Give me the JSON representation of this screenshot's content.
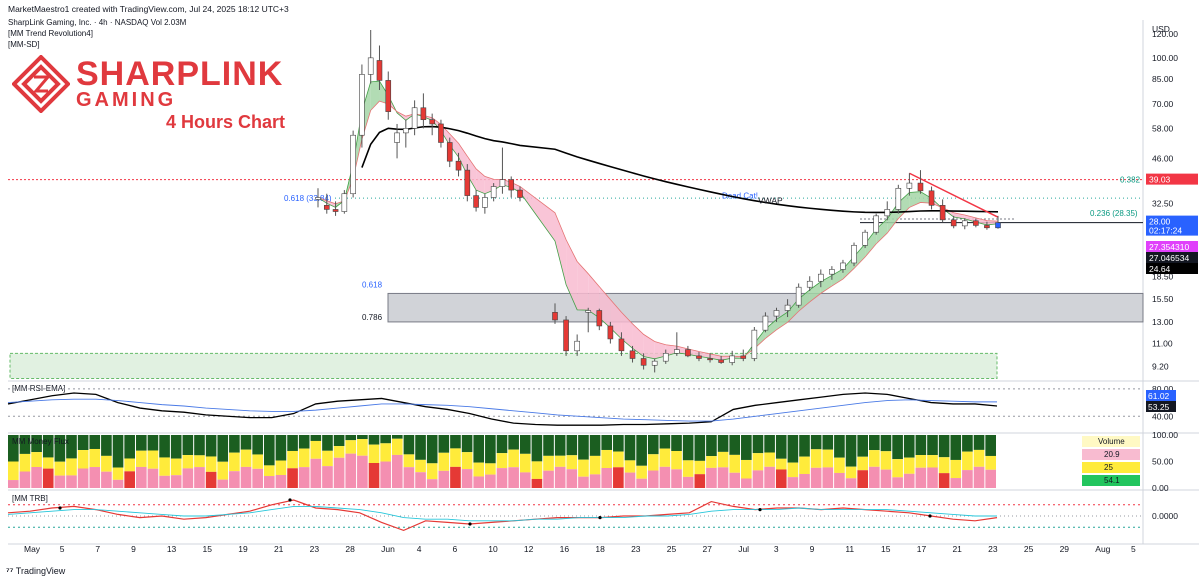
{
  "header": {
    "attribution": "MarketMaestro1 created with TradingView.com, Jul 24, 2025 18:12 UTC+3",
    "symbol_line": "SharpLink Gaming, Inc. · 4h · NASDAQ  Vol 2.03M",
    "indicator_1": "[MM Trend Revolution4]",
    "indicator_2": "[MM-SD]"
  },
  "logo": {
    "line1": "SHARPLINK",
    "line2": "GAMING",
    "subtitle": "4 Hours Chart",
    "color": "#e0393e"
  },
  "footer": {
    "brand": "TradingView"
  },
  "chart_data": [
    {
      "type": "candlestick",
      "pane": "price",
      "currency": "USD",
      "scale": "log",
      "y_ticks": [
        9.2,
        11.0,
        13.0,
        15.5,
        18.5,
        24.64,
        32.5,
        39.03,
        46.0,
        58.0,
        70.0,
        85.0,
        100.0,
        120.0
      ],
      "y_tick_labels": [
        "9.20",
        "11.00",
        "13.00",
        "15.50",
        "18.50",
        "",
        "32.50",
        "",
        "46.00",
        "58.00",
        "70.00",
        "85.00",
        "100.00",
        "120.00"
      ],
      "x_tick_labels": [
        "May",
        "5",
        "7",
        "9",
        "13",
        "15",
        "19",
        "21",
        "23",
        "28",
        "Jun",
        "4",
        "6",
        "10",
        "12",
        "16",
        "18",
        "23",
        "25",
        "27",
        "Jul",
        "3",
        "9",
        "11",
        "15",
        "17",
        "21",
        "23",
        "25",
        "29",
        "Aug",
        "5"
      ],
      "candles": [
        {
          "o": 33.5,
          "h": 36.5,
          "l": 31.5,
          "c": 34.0
        },
        {
          "o": 32.0,
          "h": 35.0,
          "l": 30.0,
          "c": 31.0
        },
        {
          "o": 31.0,
          "h": 33.0,
          "l": 29.5,
          "c": 30.5
        },
        {
          "o": 30.5,
          "h": 36.0,
          "l": 30.0,
          "c": 35.0
        },
        {
          "o": 35.0,
          "h": 57.0,
          "l": 34.0,
          "c": 55.0
        },
        {
          "o": 55.0,
          "h": 95.0,
          "l": 50.0,
          "c": 88.0
        },
        {
          "o": 88.0,
          "h": 124.0,
          "l": 82.0,
          "c": 100.0
        },
        {
          "o": 98.0,
          "h": 110.0,
          "l": 78.0,
          "c": 84.0
        },
        {
          "o": 84.0,
          "h": 90.0,
          "l": 62.0,
          "c": 66.0
        },
        {
          "o": 52.0,
          "h": 60.0,
          "l": 46.0,
          "c": 56.0
        },
        {
          "o": 56.0,
          "h": 62.0,
          "l": 50.0,
          "c": 58.0
        },
        {
          "o": 58.0,
          "h": 72.0,
          "l": 55.0,
          "c": 68.0
        },
        {
          "o": 68.0,
          "h": 76.0,
          "l": 58.0,
          "c": 62.0
        },
        {
          "o": 62.0,
          "h": 65.0,
          "l": 55.0,
          "c": 60.0
        },
        {
          "o": 60.0,
          "h": 62.0,
          "l": 50.0,
          "c": 52.0
        },
        {
          "o": 52.0,
          "h": 54.0,
          "l": 43.0,
          "c": 45.0
        },
        {
          "o": 45.0,
          "h": 48.0,
          "l": 40.0,
          "c": 42.0
        },
        {
          "o": 42.0,
          "h": 44.0,
          "l": 33.0,
          "c": 34.5
        },
        {
          "o": 34.5,
          "h": 36.0,
          "l": 30.5,
          "c": 31.5
        },
        {
          "o": 31.5,
          "h": 35.0,
          "l": 30.0,
          "c": 34.0
        },
        {
          "o": 34.0,
          "h": 38.0,
          "l": 33.0,
          "c": 37.0
        },
        {
          "o": 37.0,
          "h": 50.0,
          "l": 35.0,
          "c": 39.0
        },
        {
          "o": 39.0,
          "h": 40.0,
          "l": 34.0,
          "c": 36.0
        },
        {
          "o": 36.0,
          "h": 37.0,
          "l": 33.0,
          "c": 34.0
        },
        {
          "o": 14.0,
          "h": 15.0,
          "l": 12.8,
          "c": 13.2
        },
        {
          "o": 13.2,
          "h": 13.6,
          "l": 10.0,
          "c": 10.4
        },
        {
          "o": 10.4,
          "h": 11.8,
          "l": 10.0,
          "c": 11.2
        },
        {
          "o": 14.0,
          "h": 14.5,
          "l": 12.0,
          "c": 14.2
        },
        {
          "o": 14.2,
          "h": 14.4,
          "l": 12.2,
          "c": 12.6
        },
        {
          "o": 12.6,
          "h": 13.0,
          "l": 11.0,
          "c": 11.4
        },
        {
          "o": 11.4,
          "h": 12.0,
          "l": 10.0,
          "c": 10.4
        },
        {
          "o": 10.4,
          "h": 10.8,
          "l": 9.5,
          "c": 9.8
        },
        {
          "o": 9.8,
          "h": 10.2,
          "l": 9.0,
          "c": 9.3
        },
        {
          "o": 9.3,
          "h": 9.8,
          "l": 8.8,
          "c": 9.6
        },
        {
          "o": 9.6,
          "h": 10.5,
          "l": 9.4,
          "c": 10.2
        },
        {
          "o": 10.2,
          "h": 12.0,
          "l": 10.0,
          "c": 10.5
        },
        {
          "o": 10.5,
          "h": 10.8,
          "l": 9.9,
          "c": 10.0
        },
        {
          "o": 10.0,
          "h": 10.3,
          "l": 9.6,
          "c": 9.8
        },
        {
          "o": 9.8,
          "h": 10.2,
          "l": 9.5,
          "c": 9.7
        },
        {
          "o": 9.7,
          "h": 10.0,
          "l": 9.4,
          "c": 9.5
        },
        {
          "o": 9.5,
          "h": 10.4,
          "l": 9.3,
          "c": 10.0
        },
        {
          "o": 10.0,
          "h": 10.5,
          "l": 9.6,
          "c": 9.8
        },
        {
          "o": 9.8,
          "h": 12.5,
          "l": 9.6,
          "c": 12.2
        },
        {
          "o": 12.2,
          "h": 14.0,
          "l": 12.0,
          "c": 13.6
        },
        {
          "o": 13.6,
          "h": 14.5,
          "l": 13.0,
          "c": 14.2
        },
        {
          "o": 14.2,
          "h": 15.5,
          "l": 13.5,
          "c": 14.8
        },
        {
          "o": 14.8,
          "h": 17.5,
          "l": 14.5,
          "c": 17.0
        },
        {
          "o": 17.0,
          "h": 18.5,
          "l": 16.5,
          "c": 17.8
        },
        {
          "o": 17.8,
          "h": 19.5,
          "l": 17.0,
          "c": 18.8
        },
        {
          "o": 18.8,
          "h": 20.0,
          "l": 18.0,
          "c": 19.5
        },
        {
          "o": 19.5,
          "h": 21.0,
          "l": 19.0,
          "c": 20.5
        },
        {
          "o": 20.5,
          "h": 24.0,
          "l": 20.0,
          "c": 23.5
        },
        {
          "o": 23.5,
          "h": 26.5,
          "l": 23.0,
          "c": 26.0
        },
        {
          "o": 26.0,
          "h": 30.0,
          "l": 25.5,
          "c": 29.5
        },
        {
          "o": 29.5,
          "h": 33.0,
          "l": 28.5,
          "c": 31.0
        },
        {
          "o": 31.0,
          "h": 37.5,
          "l": 30.0,
          "c": 36.5
        },
        {
          "o": 36.5,
          "h": 41.0,
          "l": 34.5,
          "c": 38.0
        },
        {
          "o": 38.0,
          "h": 42.0,
          "l": 35.0,
          "c": 35.8
        },
        {
          "o": 35.8,
          "h": 37.0,
          "l": 31.0,
          "c": 32.0
        },
        {
          "o": 32.0,
          "h": 33.5,
          "l": 28.0,
          "c": 28.6
        },
        {
          "o": 28.6,
          "h": 29.5,
          "l": 26.8,
          "c": 27.3
        },
        {
          "o": 27.3,
          "h": 29.0,
          "l": 26.6,
          "c": 28.4
        },
        {
          "o": 28.4,
          "h": 28.9,
          "l": 27.0,
          "c": 27.4
        },
        {
          "o": 27.4,
          "h": 28.2,
          "l": 26.5,
          "c": 26.9
        },
        {
          "o": 26.9,
          "h": 29.5,
          "l": 26.7,
          "c": 28.0
        }
      ],
      "horizontal_levels": [
        {
          "label": "0.382",
          "value": 39.03
        },
        {
          "label": "0.236 (28.35)",
          "value": 28.35
        },
        {
          "label": "0.618 (33.84)",
          "value": 33.84
        },
        {
          "label": "Dead Cat!",
          "value": 34.5
        }
      ],
      "zones": [
        {
          "label_top": "0.618",
          "label_bottom": "0.786",
          "from": 13.0,
          "to": 16.2,
          "color": "#b2b5be"
        },
        {
          "from": 8.4,
          "to": 10.2,
          "color": "#c8e6c9"
        }
      ],
      "annotations": [
        "VWAP"
      ],
      "price_tags": [
        {
          "value": 39.03,
          "text": "39.03",
          "color": "#f23645"
        },
        {
          "value": 28.0,
          "text": "28.00",
          "sub": "02:17:24",
          "color": "#2962ff"
        },
        {
          "value": 27.35431,
          "text": "27.354310",
          "color": "#e040fb"
        },
        {
          "value": 27.046534,
          "text": "27.046534",
          "color": "#131722"
        },
        {
          "value": 24.64,
          "text": "24.64",
          "color": "#000000"
        }
      ]
    },
    {
      "type": "line",
      "pane": "rsi",
      "title": "[MM RSI-EMA]",
      "y_ticks": [
        40.0,
        80.0
      ],
      "series": [
        {
          "color": "#000000",
          "values": [
            58,
            64,
            70,
            74,
            72,
            60,
            52,
            48,
            46,
            42,
            40,
            38,
            38,
            44,
            58,
            62,
            64,
            66,
            60,
            54,
            50,
            44,
            36,
            30,
            28,
            27,
            27,
            27,
            28,
            28,
            29,
            30,
            32,
            50,
            56,
            60,
            64,
            68,
            72,
            74,
            72,
            66,
            60,
            58,
            58,
            55
          ]
        },
        {
          "color": "#4a7ae6",
          "values": [
            60,
            62,
            64,
            65,
            65,
            63,
            60,
            57,
            55,
            52,
            50,
            48,
            47,
            47,
            49,
            52,
            55,
            58,
            58,
            57,
            56,
            54,
            51,
            48,
            45,
            42,
            40,
            38,
            36,
            35,
            34,
            33,
            33,
            36,
            40,
            44,
            48,
            52,
            56,
            60,
            63,
            64,
            63,
            62,
            61,
            61
          ]
        }
      ],
      "price_tags": [
        {
          "text": "61.02",
          "color": "#2962ff"
        },
        {
          "text": "53.25",
          "color": "#131722"
        }
      ]
    },
    {
      "type": "bar",
      "pane": "flux",
      "title": "MM Money Flux",
      "y_ticks": [
        0.0,
        50.0,
        100.0
      ],
      "legend": {
        "title": "Volume",
        "rows": [
          {
            "text": "20.9",
            "color": "#f8bbd0"
          },
          {
            "text": "25",
            "color": "#ffeb3b"
          },
          {
            "text": "54.1",
            "color": "#22c55e"
          }
        ]
      }
    },
    {
      "type": "line",
      "pane": "trb",
      "title": "[MM TRB]",
      "y_ticks": [
        0.0
      ],
      "series": [
        {
          "color": "#e53935",
          "values": [
            0.2,
            0.3,
            0.5,
            0.6,
            0.4,
            0.1,
            -0.1,
            0.0,
            -0.2,
            -0.1,
            0.1,
            0.3,
            0.7,
            1.0,
            0.5,
            0.4,
            0.2,
            -0.4,
            -0.9,
            -0.3,
            -0.4,
            -0.5,
            -0.4,
            -0.3,
            -0.2,
            -0.1,
            -0.1,
            -0.1,
            0.0,
            0.0,
            0.1,
            0.2,
            0.9,
            0.6,
            0.4,
            0.5,
            0.5,
            0.4,
            0.5,
            0.4,
            0.3,
            0.2,
            0.0,
            -0.2,
            -0.3,
            -0.1
          ]
        },
        {
          "color": "#26c6da",
          "values": [
            0.1,
            0.2,
            0.3,
            0.4,
            0.4,
            0.3,
            0.2,
            0.1,
            0.0,
            0.0,
            0.1,
            0.2,
            0.4,
            0.6,
            0.6,
            0.5,
            0.4,
            0.2,
            -0.1,
            -0.2,
            -0.2,
            -0.3,
            -0.3,
            -0.3,
            -0.2,
            -0.2,
            -0.1,
            -0.1,
            -0.1,
            0.0,
            0.0,
            0.1,
            0.3,
            0.4,
            0.4,
            0.4,
            0.5,
            0.4,
            0.4,
            0.4,
            0.4,
            0.3,
            0.2,
            0.1,
            0.0,
            0.0
          ]
        }
      ]
    }
  ]
}
